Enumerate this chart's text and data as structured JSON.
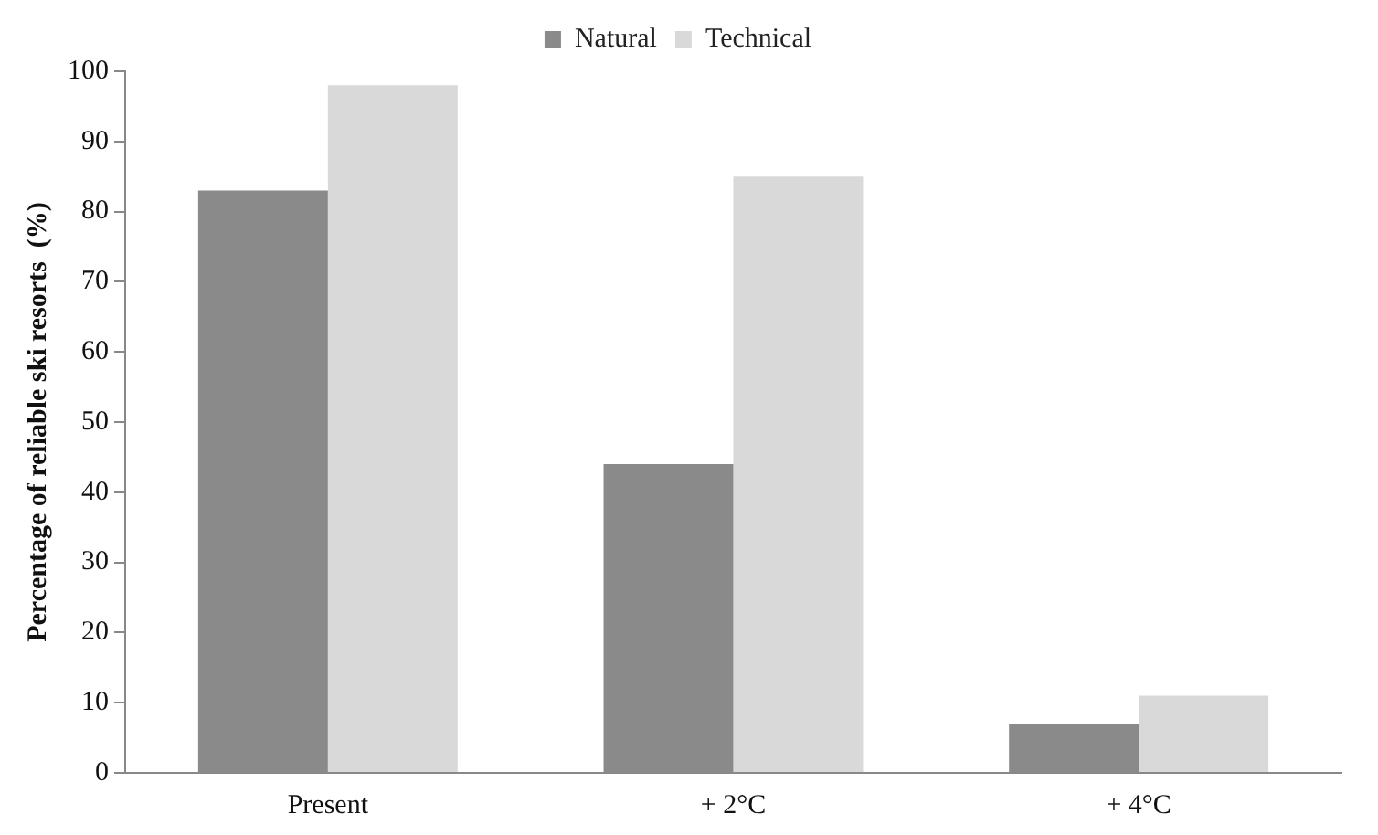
{
  "chart_data": {
    "type": "bar",
    "ylabel": "Percentage of reliable ski resorts  (%)",
    "categories": [
      "Present",
      "+ 2°C",
      "+ 4°C"
    ],
    "series": [
      {
        "name": "Natural",
        "color": "#8a8a8a",
        "values": [
          83,
          44,
          7
        ]
      },
      {
        "name": "Technical",
        "color": "#d9d9d9",
        "values": [
          98,
          85,
          11
        ]
      }
    ],
    "ylim": [
      0,
      100
    ],
    "yticks": [
      0,
      10,
      20,
      30,
      40,
      50,
      60,
      70,
      80,
      90,
      100
    ],
    "grid": false,
    "legend": "top"
  }
}
